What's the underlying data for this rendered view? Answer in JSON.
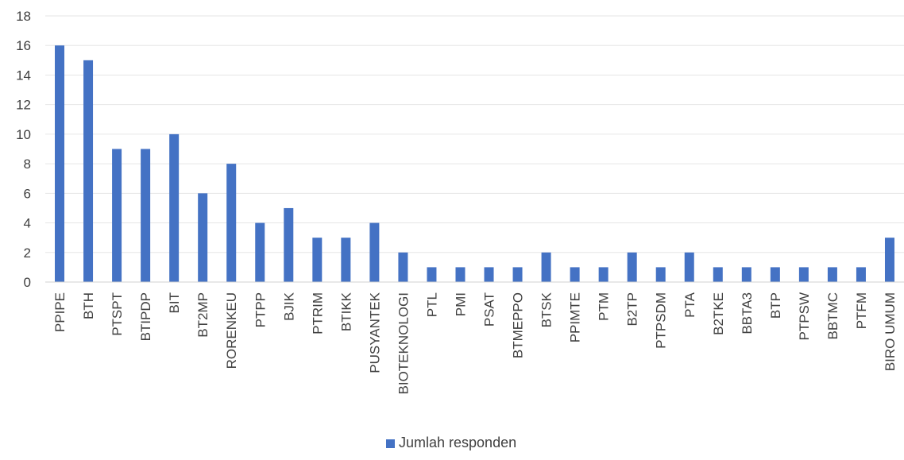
{
  "chart_data": {
    "type": "bar",
    "title": "",
    "xlabel": "",
    "ylabel": "",
    "ylim": [
      0,
      18
    ],
    "yticks": [
      0,
      2,
      4,
      6,
      8,
      10,
      12,
      14,
      16,
      18
    ],
    "grid": true,
    "legend_position": "bottom",
    "categories": [
      "PPIPE",
      "BTH",
      "PTSPT",
      "BTIPDP",
      "BIT",
      "BT2MP",
      "RORENKEU",
      "PTPP",
      "BJIK",
      "PTRIM",
      "BTIKK",
      "PUSYANTEK",
      "BIOTEKNOLOGI",
      "PTL",
      "PMI",
      "PSAT",
      "BTMEPPO",
      "BTSK",
      "PPIMTE",
      "PTM",
      "B2TP",
      "PTPSDM",
      "PTA",
      "B2TKE",
      "BBTA3",
      "BTP",
      "PTPSW",
      "BBTMC",
      "PTFM",
      "BIRO UMUM"
    ],
    "series": [
      {
        "name": "Jumlah responden",
        "color": "#4472c4",
        "values": [
          16,
          15,
          9,
          9,
          10,
          6,
          8,
          4,
          5,
          3,
          3,
          4,
          2,
          1,
          1,
          1,
          1,
          2,
          1,
          1,
          2,
          1,
          2,
          1,
          1,
          1,
          1,
          1,
          1,
          3
        ]
      }
    ]
  }
}
